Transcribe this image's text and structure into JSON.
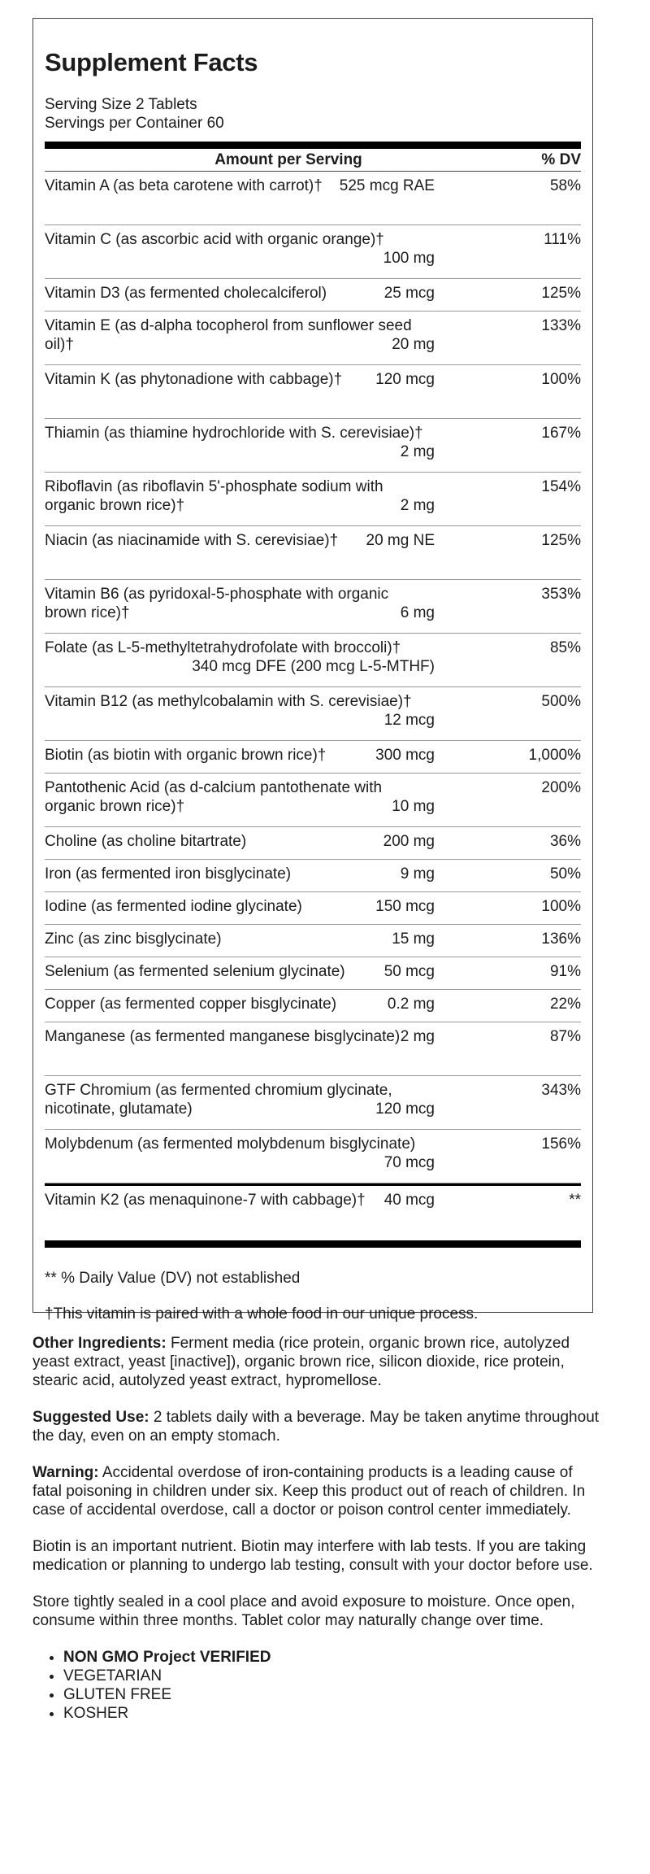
{
  "title": "Supplement Facts",
  "serving_size": "Serving Size 2 Tablets",
  "servings_per_container": "Servings per Container 60",
  "header": {
    "amount": "Amount per Serving",
    "dv": "% DV"
  },
  "nutrients": [
    {
      "name": "Vitamin A (as beta carotene with carrot)†",
      "amount": "525 mcg RAE",
      "dv": "58%"
    },
    {
      "name": "Vitamin C (as ascorbic acid with organic orange)†",
      "amount": "100 mg",
      "dv": "111%"
    },
    {
      "name": "Vitamin D3 (as fermented cholecalciferol)",
      "amount": "25 mcg",
      "dv": "125%"
    },
    {
      "name": "Vitamin E (as d-alpha tocopherol from sunflower seed oil)†",
      "amount": "20 mg",
      "dv": "133%"
    },
    {
      "name": "Vitamin K (as phytonadione with cabbage)†",
      "amount": "120 mcg",
      "dv": "100%"
    },
    {
      "name": "Thiamin (as thiamine hydrochloride with S. cerevisiae)†",
      "amount": "2 mg",
      "dv": "167%"
    },
    {
      "name": "Riboflavin (as riboflavin 5'-phosphate sodium with organic brown rice)†",
      "amount": "2 mg",
      "dv": "154%"
    },
    {
      "name": "Niacin (as niacinamide with S. cerevisiae)†",
      "amount": "20 mg NE",
      "dv": "125%"
    },
    {
      "name": "Vitamin B6 (as pyridoxal-5-phosphate with organic brown rice)†",
      "amount": "6 mg",
      "dv": "353%"
    },
    {
      "name": "Folate (as L-5-methyltetrahydrofolate with broccoli)†",
      "amount": "340 mcg DFE (200 mcg L-5-MTHF)",
      "dv": "85%"
    },
    {
      "name": "Vitamin B12 (as methylcobalamin with S. cerevisiae)†",
      "amount": "12 mcg",
      "dv": "500%"
    },
    {
      "name": "Biotin (as biotin with organic brown rice)†",
      "amount": "300 mcg",
      "dv": "1,000%"
    },
    {
      "name": "Pantothenic Acid (as d-calcium pantothenate with organic brown rice)†",
      "amount": "10 mg",
      "dv": "200%"
    },
    {
      "name": "Choline (as choline bitartrate)",
      "amount": "200 mg",
      "dv": "36%"
    },
    {
      "name": "Iron (as fermented iron bisglycinate)",
      "amount": "9 mg",
      "dv": "50%"
    },
    {
      "name": "Iodine (as fermented iodine glycinate)",
      "amount": "150 mcg",
      "dv": "100%"
    },
    {
      "name": "Zinc (as zinc bisglycinate)",
      "amount": "15 mg",
      "dv": "136%"
    },
    {
      "name": "Selenium (as fermented selenium glycinate)",
      "amount": "50 mcg",
      "dv": "91%"
    },
    {
      "name": "Copper (as fermented copper bisglycinate)",
      "amount": "0.2 mg",
      "dv": "22%"
    },
    {
      "name": "Manganese (as fermented manganese bisglycinate)",
      "amount": "2 mg",
      "dv": "87%"
    },
    {
      "name": "GTF Chromium (as fermented chromium glycinate, nicotinate, glutamate)",
      "amount": "120 mcg",
      "dv": "343%"
    },
    {
      "name": "Molybdenum (as fermented molybdenum bisglycinate)",
      "amount": "70 mcg",
      "dv": "156%"
    }
  ],
  "extra_nutrient": {
    "name": "Vitamin K2 (as menaquinone-7 with cabbage)†",
    "amount": "40 mcg",
    "dv": "**"
  },
  "footnote_dv": "** % Daily Value (DV) not established",
  "footnote_dagger": "†This vitamin is paired with a whole food in our unique process.",
  "other_ingredients": {
    "label": "Other Ingredients:",
    "text": " Ferment media (rice protein, organic brown rice, autolyzed yeast extract, yeast [inactive]), organic brown rice, silicon dioxide, rice protein, stearic acid, autolyzed yeast extract, hypromellose."
  },
  "suggested_use": {
    "label": "Suggested Use:",
    "text": " 2 tablets daily with a beverage. May be taken anytime throughout the day, even on an empty stomach."
  },
  "warning": {
    "label": "Warning:",
    "text": " Accidental overdose of iron-containing products is a leading cause of fatal poisoning in children under six. Keep this product out of reach of children. In case of accidental overdose, call a doctor or poison control center immediately."
  },
  "biotin_note": "Biotin is an important nutrient. Biotin may interfere with lab tests. If you are taking medication or planning to undergo lab testing, consult with your doctor before use.",
  "storage_note": "Store tightly sealed in a cool place and avoid exposure to moisture. Once open, consume within three months. Tablet color may naturally change over time.",
  "claims": [
    "NON GMO Project VERIFIED",
    "VEGETARIAN",
    "GLUTEN FREE",
    "KOSHER"
  ]
}
